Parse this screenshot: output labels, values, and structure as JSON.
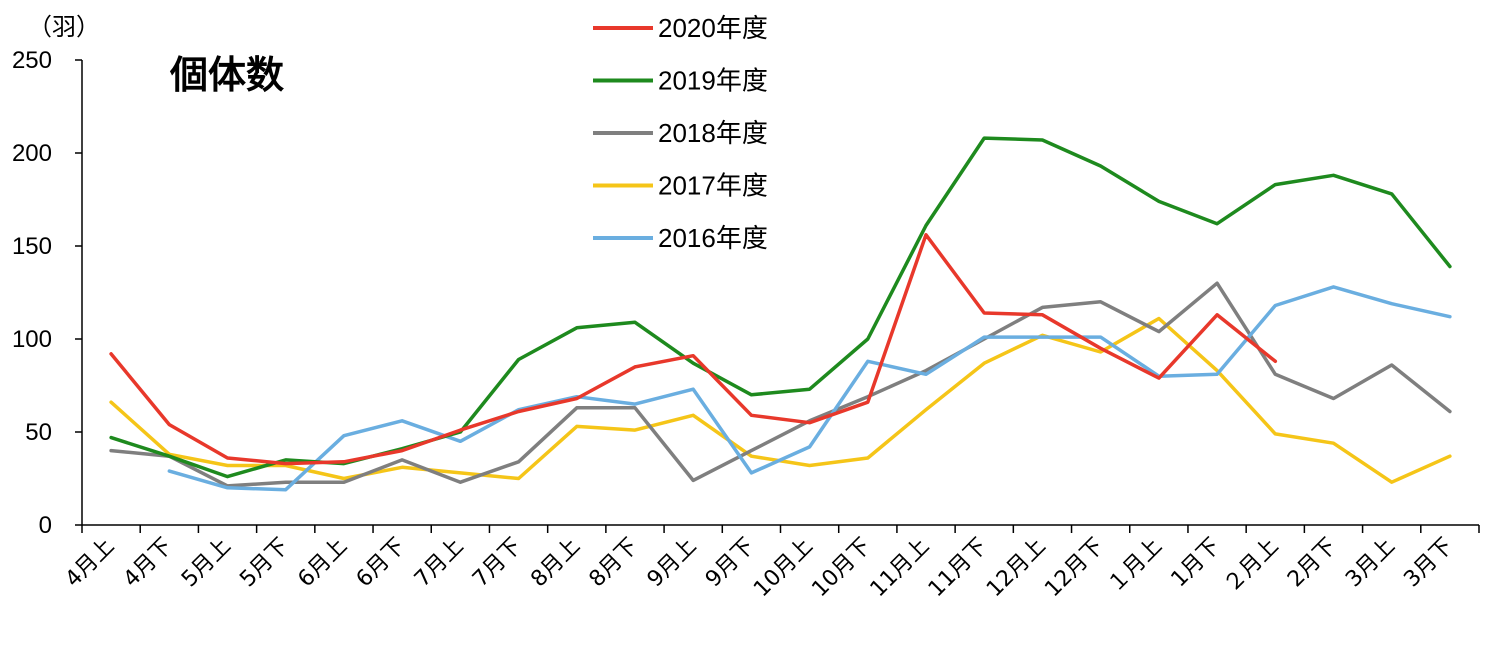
{
  "chart_data": {
    "type": "line",
    "title": "個体数",
    "unit_label": "（羽）",
    "ylim": [
      0,
      250
    ],
    "yticks": [
      0,
      50,
      100,
      150,
      200,
      250
    ],
    "grid": false,
    "legend_position": "top-center",
    "categories": [
      "4月上",
      "4月下",
      "5月上",
      "5月下",
      "6月上",
      "6月下",
      "7月上",
      "7月下",
      "8月上",
      "8月下",
      "9月上",
      "9月下",
      "10月上",
      "10月下",
      "11月上",
      "11月下",
      "12月上",
      "12月下",
      "１月上",
      "1月下",
      "２月上",
      "2月下",
      "3月上",
      "3月下"
    ],
    "series": [
      {
        "name": "2020年度",
        "color": "#e8382b",
        "values": [
          92,
          54,
          36,
          33,
          34,
          40,
          51,
          61,
          68,
          85,
          91,
          59,
          55,
          66,
          156,
          114,
          113,
          95,
          79,
          113,
          88,
          null,
          null,
          null
        ]
      },
      {
        "name": "2019年度",
        "color": "#1e8a1e",
        "values": [
          47,
          37,
          26,
          35,
          33,
          41,
          50,
          89,
          106,
          109,
          87,
          70,
          73,
          100,
          161,
          208,
          207,
          193,
          174,
          162,
          183,
          188,
          178,
          139
        ]
      },
      {
        "name": "2018年度",
        "color": "#7f7f7f",
        "values": [
          40,
          37,
          21,
          23,
          23,
          35,
          23,
          34,
          63,
          63,
          24,
          40,
          56,
          69,
          83,
          100,
          117,
          120,
          104,
          130,
          81,
          68,
          86,
          61
        ]
      },
      {
        "name": "2017年度",
        "color": "#f5c518",
        "values": [
          66,
          38,
          32,
          32,
          25,
          31,
          28,
          25,
          53,
          51,
          59,
          37,
          32,
          36,
          62,
          87,
          102,
          93,
          111,
          83,
          49,
          44,
          23,
          37
        ]
      },
      {
        "name": "2016年度",
        "color": "#6aaee0",
        "values": [
          null,
          29,
          20,
          19,
          48,
          56,
          45,
          62,
          69,
          65,
          73,
          28,
          42,
          88,
          81,
          101,
          101,
          101,
          80,
          81,
          118,
          128,
          119,
          112
        ]
      }
    ]
  }
}
